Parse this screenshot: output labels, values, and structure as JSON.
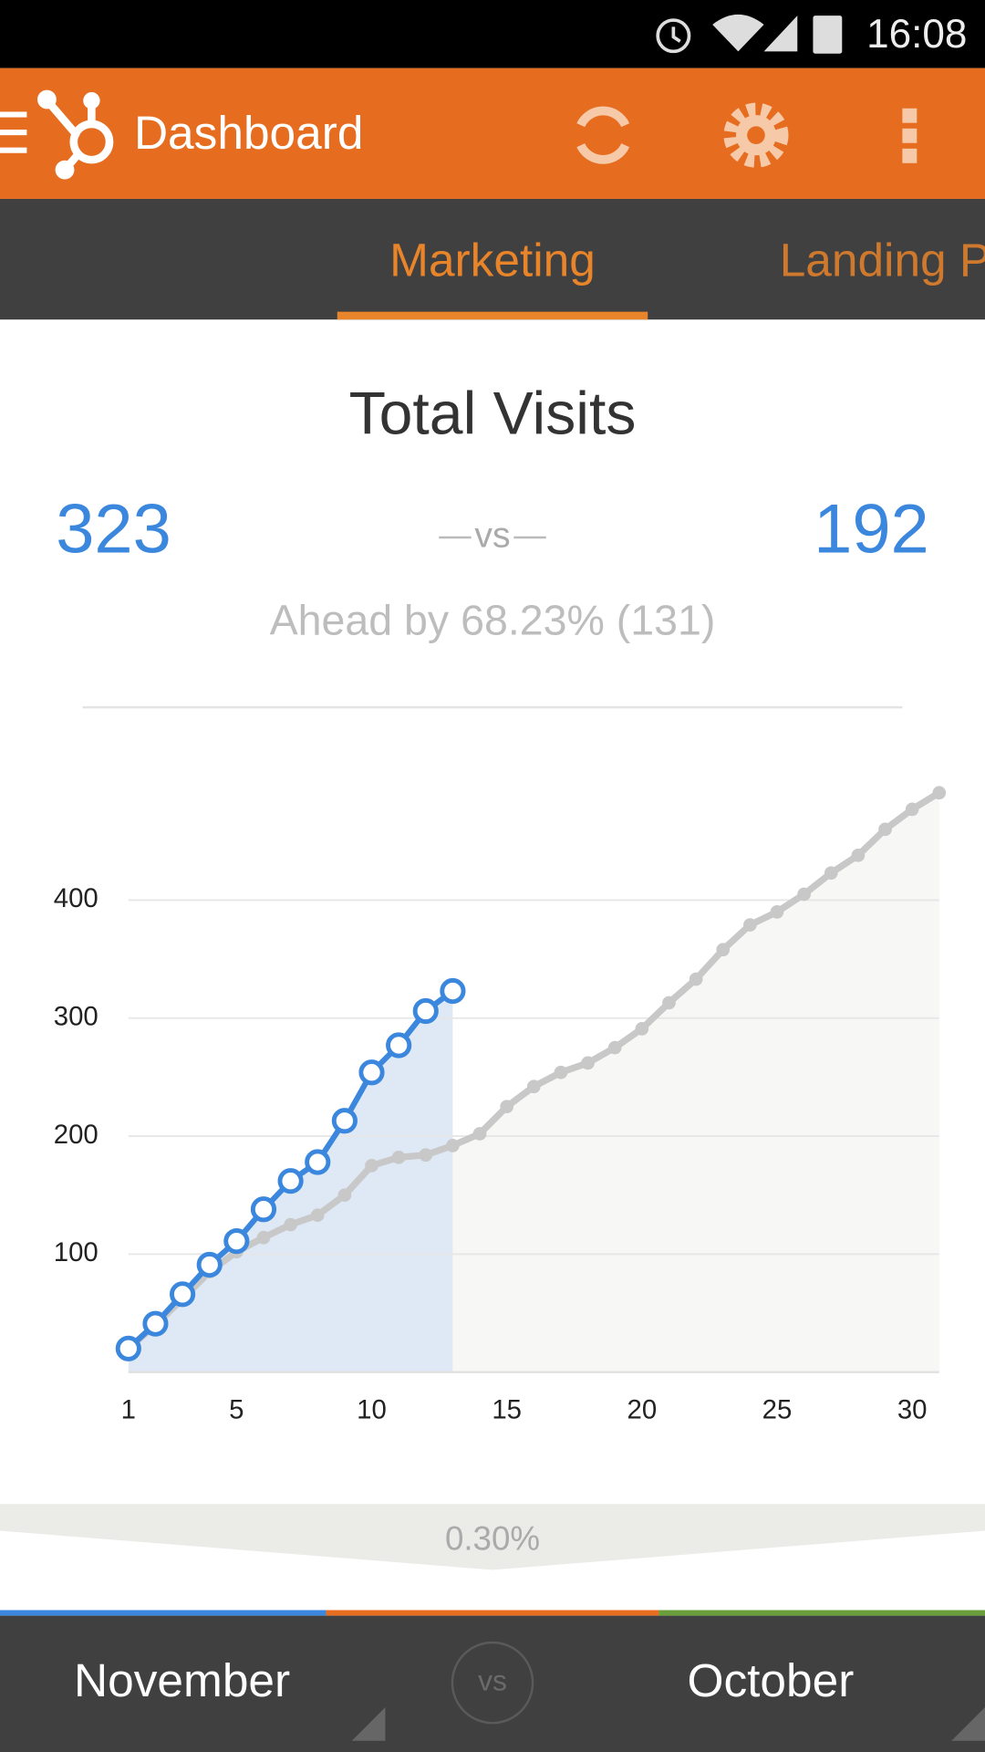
{
  "status_bar": {
    "time": "16:08"
  },
  "app_bar": {
    "title": "Dashboard"
  },
  "tabs": [
    "Marketing",
    "Landing P"
  ],
  "card": {
    "title": "Total Visits",
    "current": 323,
    "vs": "vs",
    "previous": 192,
    "comparison": "Ahead by 68.23% (131)"
  },
  "chart_data": {
    "type": "line",
    "x": [
      1,
      2,
      3,
      4,
      5,
      6,
      7,
      8,
      9,
      10,
      11,
      12,
      13,
      14,
      15,
      16,
      17,
      18,
      19,
      20,
      21,
      22,
      23,
      24,
      25,
      26,
      27,
      28,
      29,
      30,
      31
    ],
    "series": [
      {
        "name": "November",
        "color": "#3b87dd",
        "area_color": "#dfe9f5",
        "values": [
          20,
          41,
          66,
          91,
          111,
          138,
          162,
          178,
          213,
          254,
          277,
          306,
          323,
          null,
          null,
          null,
          null,
          null,
          null,
          null,
          null,
          null,
          null,
          null,
          null,
          null,
          null,
          null,
          null,
          null,
          null
        ]
      },
      {
        "name": "October",
        "color": "#c8c8c8",
        "area_color": "#f7f7f5",
        "values": [
          20,
          40,
          62,
          85,
          102,
          114,
          125,
          133,
          150,
          175,
          182,
          184,
          192,
          202,
          225,
          242,
          254,
          262,
          275,
          291,
          313,
          333,
          358,
          379,
          390,
          405,
          423,
          438,
          460,
          477,
          491
        ]
      }
    ],
    "xlim": [
      1,
      31
    ],
    "ylim": [
      0,
      500
    ],
    "xticks": [
      1,
      5,
      10,
      15,
      20,
      25,
      30
    ],
    "yticks": [
      100,
      200,
      300,
      400
    ],
    "grid": true
  },
  "footer": {
    "change": "0.30%",
    "vs": "vs"
  }
}
